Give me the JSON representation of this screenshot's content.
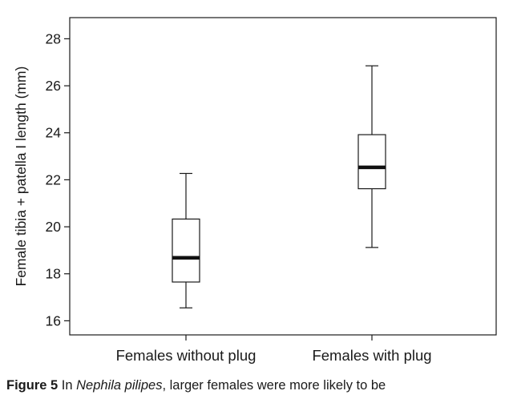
{
  "chart_data": {
    "type": "boxplot",
    "ylabel": "Female tibia + patella I length (mm)",
    "ylim": [
      15.4,
      28.9
    ],
    "yticks": [
      16,
      18,
      20,
      22,
      24,
      26,
      28
    ],
    "categories": [
      "Females without plug",
      "Females with plug"
    ],
    "boxes": [
      {
        "category": "Females without plug",
        "whisker_low": 16.55,
        "q1": 17.65,
        "median": 18.68,
        "q3": 20.33,
        "whisker_high": 22.27
      },
      {
        "category": "Females with plug",
        "whisker_low": 19.12,
        "q1": 21.62,
        "median": 22.53,
        "q3": 23.92,
        "whisker_high": 26.85
      }
    ],
    "colors": {
      "axis": "#1a1a1a",
      "box_fill": "#ffffff",
      "median": "#111111"
    }
  },
  "caption": {
    "figure_label": "Figure 5",
    "text_before": " In ",
    "species": "Nephila pilipes",
    "text_after": ", larger females were more likely to be"
  }
}
